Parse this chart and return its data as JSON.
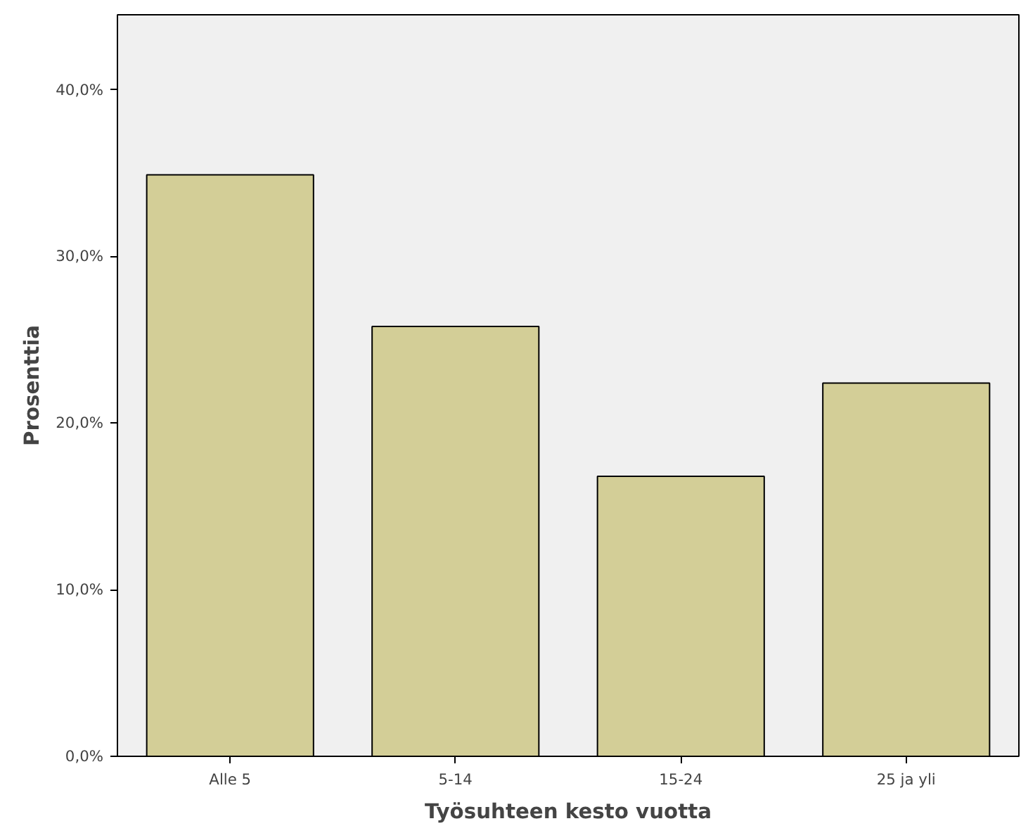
{
  "chart_data": {
    "type": "bar",
    "xlabel": "Työsuhteen kesto vuotta",
    "ylabel": "Prosenttia",
    "categories": [
      "Alle 5",
      "5-14",
      "15-24",
      "25 ja yli"
    ],
    "values": [
      34.9,
      25.8,
      16.8,
      22.4
    ],
    "color": "#d3ce97",
    "ylim": [
      0,
      44.5
    ],
    "yticks": [
      {
        "value": 0,
        "label": "0,0%"
      },
      {
        "value": 10,
        "label": "10,0%"
      },
      {
        "value": 20,
        "label": "20,0%"
      },
      {
        "value": 30,
        "label": "30,0%"
      },
      {
        "value": 40,
        "label": "40,0%"
      }
    ],
    "grid": false
  }
}
